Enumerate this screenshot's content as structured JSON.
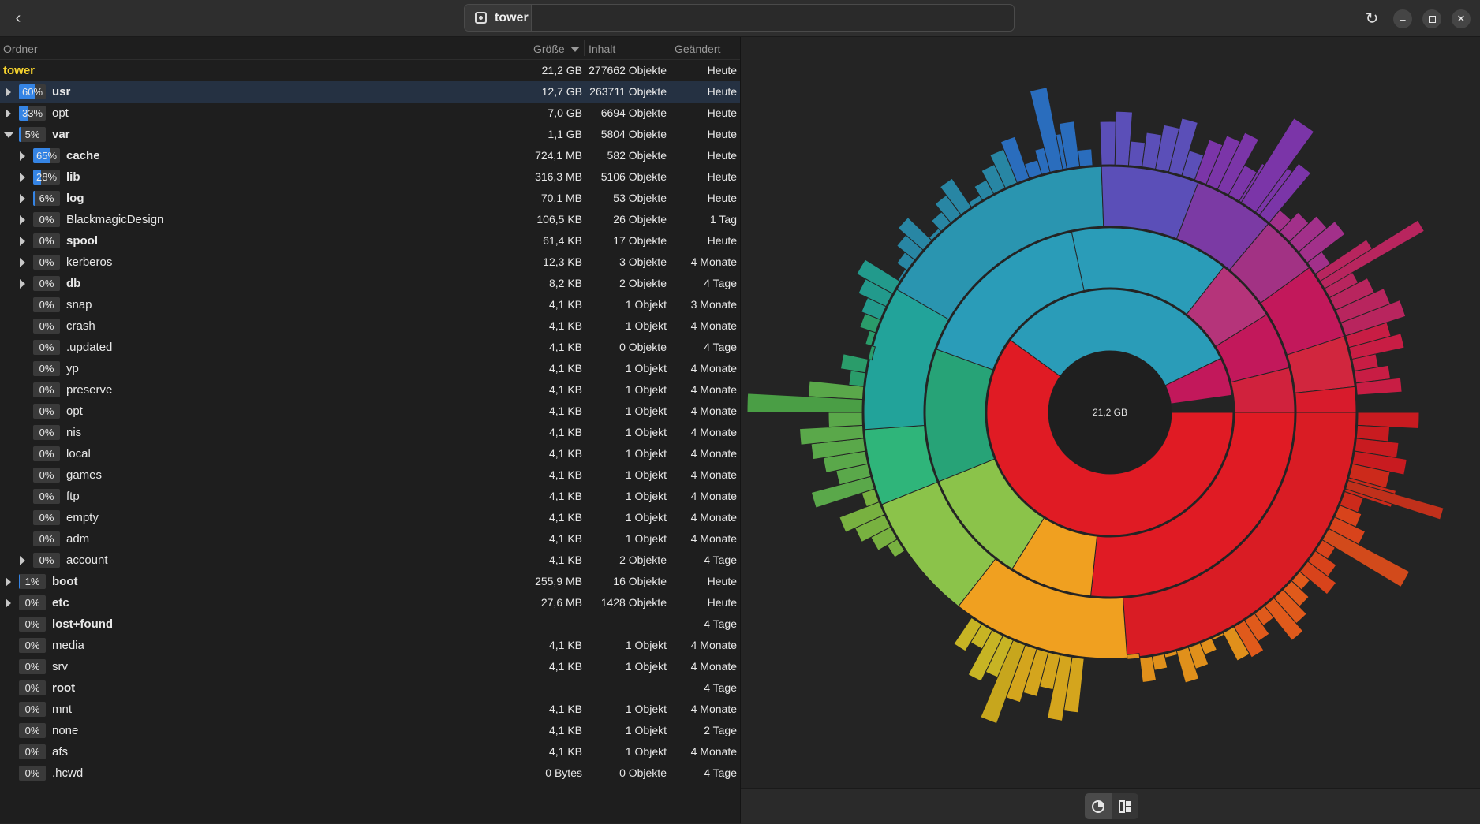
{
  "header": {
    "back_icon": "arrow-left-icon",
    "location": "tower",
    "location_icon": "drive-icon",
    "reload_icon": "reload-icon",
    "minimize_icon": "minimize-icon",
    "maximize_icon": "maximize-icon",
    "close_icon": "close-icon"
  },
  "columns": {
    "folder": "Ordner",
    "size": "Größe",
    "content": "Inhalt",
    "modified": "Geändert"
  },
  "rows": [
    {
      "name": "tower",
      "pct": "",
      "fill": 0,
      "size": "21,2 GB",
      "items": "277662 Objekte",
      "mod": "Heute",
      "level": -1,
      "expander": "none",
      "bold": true,
      "root": true
    },
    {
      "name": "usr",
      "pct": "60%",
      "fill": 0.6,
      "size": "12,7 GB",
      "items": "263711 Objekte",
      "mod": "Heute",
      "level": 0,
      "expander": "closed",
      "bold": true,
      "selected": true
    },
    {
      "name": "opt",
      "pct": "33%",
      "fill": 0.33,
      "size": "7,0 GB",
      "items": "6694 Objekte",
      "mod": "Heute",
      "level": 0,
      "expander": "closed",
      "bold": false
    },
    {
      "name": "var",
      "pct": "5%",
      "fill": 0.05,
      "size": "1,1 GB",
      "items": "5804 Objekte",
      "mod": "Heute",
      "level": 0,
      "expander": "open",
      "bold": true
    },
    {
      "name": "cache",
      "pct": "65%",
      "fill": 0.65,
      "size": "724,1 MB",
      "items": "582 Objekte",
      "mod": "Heute",
      "level": 1,
      "expander": "closed",
      "bold": true
    },
    {
      "name": "lib",
      "pct": "28%",
      "fill": 0.28,
      "size": "316,3 MB",
      "items": "5106 Objekte",
      "mod": "Heute",
      "level": 1,
      "expander": "closed",
      "bold": true
    },
    {
      "name": "log",
      "pct": "6%",
      "fill": 0.06,
      "size": "70,1 MB",
      "items": "53 Objekte",
      "mod": "Heute",
      "level": 1,
      "expander": "closed",
      "bold": true
    },
    {
      "name": "BlackmagicDesign",
      "pct": "0%",
      "fill": 0,
      "size": "106,5 KB",
      "items": "26 Objekte",
      "mod": "1 Tag",
      "level": 1,
      "expander": "closed",
      "bold": false
    },
    {
      "name": "spool",
      "pct": "0%",
      "fill": 0,
      "size": "61,4 KB",
      "items": "17 Objekte",
      "mod": "Heute",
      "level": 1,
      "expander": "closed",
      "bold": true
    },
    {
      "name": "kerberos",
      "pct": "0%",
      "fill": 0,
      "size": "12,3 KB",
      "items": "3 Objekte",
      "mod": "4 Monate",
      "level": 1,
      "expander": "closed",
      "bold": false
    },
    {
      "name": "db",
      "pct": "0%",
      "fill": 0,
      "size": "8,2 KB",
      "items": "2 Objekte",
      "mod": "4 Tage",
      "level": 1,
      "expander": "closed",
      "bold": true
    },
    {
      "name": "snap",
      "pct": "0%",
      "fill": 0,
      "size": "4,1 KB",
      "items": "1 Objekt",
      "mod": "3 Monate",
      "level": 1,
      "expander": "none",
      "bold": false
    },
    {
      "name": "crash",
      "pct": "0%",
      "fill": 0,
      "size": "4,1 KB",
      "items": "1 Objekt",
      "mod": "4 Monate",
      "level": 1,
      "expander": "none",
      "bold": false
    },
    {
      "name": ".updated",
      "pct": "0%",
      "fill": 0,
      "size": "4,1 KB",
      "items": "0 Objekte",
      "mod": "4 Tage",
      "level": 1,
      "expander": "none",
      "bold": false
    },
    {
      "name": "yp",
      "pct": "0%",
      "fill": 0,
      "size": "4,1 KB",
      "items": "1 Objekt",
      "mod": "4 Monate",
      "level": 1,
      "expander": "none",
      "bold": false
    },
    {
      "name": "preserve",
      "pct": "0%",
      "fill": 0,
      "size": "4,1 KB",
      "items": "1 Objekt",
      "mod": "4 Monate",
      "level": 1,
      "expander": "none",
      "bold": false
    },
    {
      "name": "opt",
      "pct": "0%",
      "fill": 0,
      "size": "4,1 KB",
      "items": "1 Objekt",
      "mod": "4 Monate",
      "level": 1,
      "expander": "none",
      "bold": false
    },
    {
      "name": "nis",
      "pct": "0%",
      "fill": 0,
      "size": "4,1 KB",
      "items": "1 Objekt",
      "mod": "4 Monate",
      "level": 1,
      "expander": "none",
      "bold": false
    },
    {
      "name": "local",
      "pct": "0%",
      "fill": 0,
      "size": "4,1 KB",
      "items": "1 Objekt",
      "mod": "4 Monate",
      "level": 1,
      "expander": "none",
      "bold": false
    },
    {
      "name": "games",
      "pct": "0%",
      "fill": 0,
      "size": "4,1 KB",
      "items": "1 Objekt",
      "mod": "4 Monate",
      "level": 1,
      "expander": "none",
      "bold": false
    },
    {
      "name": "ftp",
      "pct": "0%",
      "fill": 0,
      "size": "4,1 KB",
      "items": "1 Objekt",
      "mod": "4 Monate",
      "level": 1,
      "expander": "none",
      "bold": false
    },
    {
      "name": "empty",
      "pct": "0%",
      "fill": 0,
      "size": "4,1 KB",
      "items": "1 Objekt",
      "mod": "4 Monate",
      "level": 1,
      "expander": "none",
      "bold": false
    },
    {
      "name": "adm",
      "pct": "0%",
      "fill": 0,
      "size": "4,1 KB",
      "items": "1 Objekt",
      "mod": "4 Monate",
      "level": 1,
      "expander": "none",
      "bold": false
    },
    {
      "name": "account",
      "pct": "0%",
      "fill": 0,
      "size": "4,1 KB",
      "items": "2 Objekte",
      "mod": "4 Tage",
      "level": 1,
      "expander": "closed",
      "bold": false
    },
    {
      "name": "boot",
      "pct": "1%",
      "fill": 0.01,
      "size": "255,9 MB",
      "items": "16 Objekte",
      "mod": "Heute",
      "level": 0,
      "expander": "closed",
      "bold": true
    },
    {
      "name": "etc",
      "pct": "0%",
      "fill": 0,
      "size": "27,6 MB",
      "items": "1428 Objekte",
      "mod": "Heute",
      "level": 0,
      "expander": "closed",
      "bold": true
    },
    {
      "name": "lost+found",
      "pct": "0%",
      "fill": 0,
      "size": "",
      "items": "",
      "mod": "4 Tage",
      "level": 0,
      "expander": "none",
      "bold": true
    },
    {
      "name": "media",
      "pct": "0%",
      "fill": 0,
      "size": "4,1 KB",
      "items": "1 Objekt",
      "mod": "4 Monate",
      "level": 0,
      "expander": "none",
      "bold": false
    },
    {
      "name": "srv",
      "pct": "0%",
      "fill": 0,
      "size": "4,1 KB",
      "items": "1 Objekt",
      "mod": "4 Monate",
      "level": 0,
      "expander": "none",
      "bold": false
    },
    {
      "name": "root",
      "pct": "0%",
      "fill": 0,
      "size": "",
      "items": "",
      "mod": "4 Tage",
      "level": 0,
      "expander": "none",
      "bold": true
    },
    {
      "name": "mnt",
      "pct": "0%",
      "fill": 0,
      "size": "4,1 KB",
      "items": "1 Objekt",
      "mod": "4 Monate",
      "level": 0,
      "expander": "none",
      "bold": false
    },
    {
      "name": "none",
      "pct": "0%",
      "fill": 0,
      "size": "4,1 KB",
      "items": "1 Objekt",
      "mod": "2 Tage",
      "level": 0,
      "expander": "none",
      "bold": false
    },
    {
      "name": "afs",
      "pct": "0%",
      "fill": 0,
      "size": "4,1 KB",
      "items": "1 Objekt",
      "mod": "4 Monate",
      "level": 0,
      "expander": "none",
      "bold": false
    },
    {
      "name": ".hcwd",
      "pct": "0%",
      "fill": 0,
      "size": "0 Bytes",
      "items": "0 Objekte",
      "mod": "4 Tage",
      "level": 0,
      "expander": "none",
      "bold": false
    }
  ],
  "chart": {
    "center_label": "21,2 GB",
    "colors": {
      "usr": "#e01b24",
      "opt": "#2a9cb8",
      "var": "#8bc34a",
      "boot": "#f0a020",
      "etc": "#c2185b"
    }
  },
  "view_toggle": {
    "rings_icon": "rings-chart-icon",
    "treemap_icon": "treemap-chart-icon"
  }
}
